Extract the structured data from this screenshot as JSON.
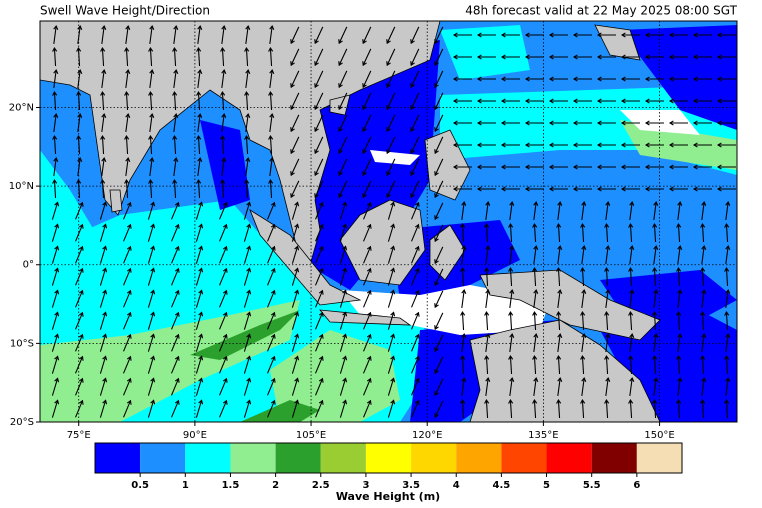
{
  "title_left": "Swell Wave Height/Direction",
  "title_right": "48h forecast valid at 22 May 2025 08:00 SGT",
  "map": {
    "xlim": [
      70,
      160
    ],
    "ylim": [
      -20,
      31
    ],
    "xticks": [
      {
        "value": 75,
        "label": "75°E"
      },
      {
        "value": 90,
        "label": "90°E"
      },
      {
        "value": 105,
        "label": "105°E"
      },
      {
        "value": 120,
        "label": "120°E"
      },
      {
        "value": 135,
        "label": "135°E"
      },
      {
        "value": 150,
        "label": "150°E"
      }
    ],
    "yticks": [
      {
        "value": -20,
        "label": "20°S"
      },
      {
        "value": -10,
        "label": "10°S"
      },
      {
        "value": 0,
        "label": "0°"
      },
      {
        "value": 10,
        "label": "10°N"
      },
      {
        "value": 20,
        "label": "20°N"
      }
    ],
    "grid": true
  },
  "colorbar": {
    "label": "Wave Height (m)",
    "colors": [
      "#0000ff",
      "#1e8fff",
      "#00ffff",
      "#90ee90",
      "#2ca02c",
      "#9acd32",
      "#ffff00",
      "#ffd700",
      "#ffa500",
      "#ff4500",
      "#ff0000",
      "#800000",
      "#f5deb3"
    ],
    "ticks": [
      0.5,
      1,
      1.5,
      2,
      2.5,
      3,
      3.5,
      4,
      4.5,
      5,
      5.5,
      6
    ]
  }
}
